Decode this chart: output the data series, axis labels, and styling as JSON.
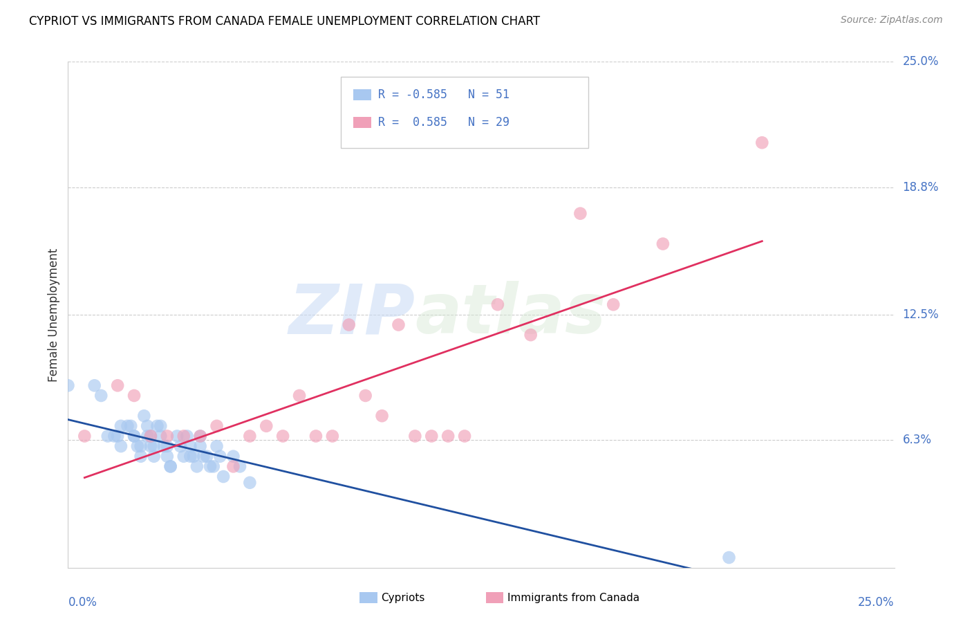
{
  "title": "CYPRIOT VS IMMIGRANTS FROM CANADA FEMALE UNEMPLOYMENT CORRELATION CHART",
  "source": "Source: ZipAtlas.com",
  "ylabel": "Female Unemployment",
  "ytick_labels": [
    "25.0%",
    "18.8%",
    "12.5%",
    "6.3%"
  ],
  "ytick_values": [
    0.25,
    0.188,
    0.125,
    0.063
  ],
  "xlim": [
    0.0,
    0.25
  ],
  "ylim": [
    0.0,
    0.25
  ],
  "cypriot_R": -0.585,
  "cypriot_N": 51,
  "canada_R": 0.585,
  "canada_N": 29,
  "cypriot_color": "#a8c8f0",
  "canada_color": "#f0a0b8",
  "cypriot_line_color": "#2050a0",
  "canada_line_color": "#e03060",
  "legend_cypriot_label": "Cypriots",
  "legend_canada_label": "Immigrants from Canada",
  "watermark_ZIP": "ZIP",
  "watermark_atlas": "atlas",
  "cypriot_x": [
    0.0,
    0.008,
    0.01,
    0.012,
    0.014,
    0.015,
    0.016,
    0.016,
    0.018,
    0.019,
    0.02,
    0.02,
    0.021,
    0.022,
    0.022,
    0.023,
    0.024,
    0.024,
    0.025,
    0.025,
    0.026,
    0.026,
    0.027,
    0.028,
    0.028,
    0.029,
    0.03,
    0.03,
    0.031,
    0.031,
    0.033,
    0.034,
    0.035,
    0.036,
    0.037,
    0.037,
    0.038,
    0.039,
    0.04,
    0.04,
    0.041,
    0.042,
    0.043,
    0.044,
    0.045,
    0.046,
    0.047,
    0.05,
    0.052,
    0.055,
    0.2
  ],
  "cypriot_y": [
    0.09,
    0.09,
    0.085,
    0.065,
    0.065,
    0.065,
    0.07,
    0.06,
    0.07,
    0.07,
    0.065,
    0.065,
    0.06,
    0.06,
    0.055,
    0.075,
    0.07,
    0.065,
    0.065,
    0.06,
    0.06,
    0.055,
    0.07,
    0.07,
    0.065,
    0.06,
    0.06,
    0.055,
    0.05,
    0.05,
    0.065,
    0.06,
    0.055,
    0.065,
    0.06,
    0.055,
    0.055,
    0.05,
    0.065,
    0.06,
    0.055,
    0.055,
    0.05,
    0.05,
    0.06,
    0.055,
    0.045,
    0.055,
    0.05,
    0.042,
    0.005
  ],
  "canada_x": [
    0.005,
    0.015,
    0.02,
    0.025,
    0.03,
    0.035,
    0.04,
    0.045,
    0.05,
    0.055,
    0.06,
    0.065,
    0.07,
    0.075,
    0.08,
    0.085,
    0.09,
    0.095,
    0.1,
    0.105,
    0.11,
    0.115,
    0.12,
    0.13,
    0.14,
    0.155,
    0.165,
    0.18,
    0.21
  ],
  "canada_y": [
    0.065,
    0.09,
    0.085,
    0.065,
    0.065,
    0.065,
    0.065,
    0.07,
    0.05,
    0.065,
    0.07,
    0.065,
    0.085,
    0.065,
    0.065,
    0.12,
    0.085,
    0.075,
    0.12,
    0.065,
    0.065,
    0.065,
    0.065,
    0.13,
    0.115,
    0.175,
    0.13,
    0.16,
    0.21
  ]
}
